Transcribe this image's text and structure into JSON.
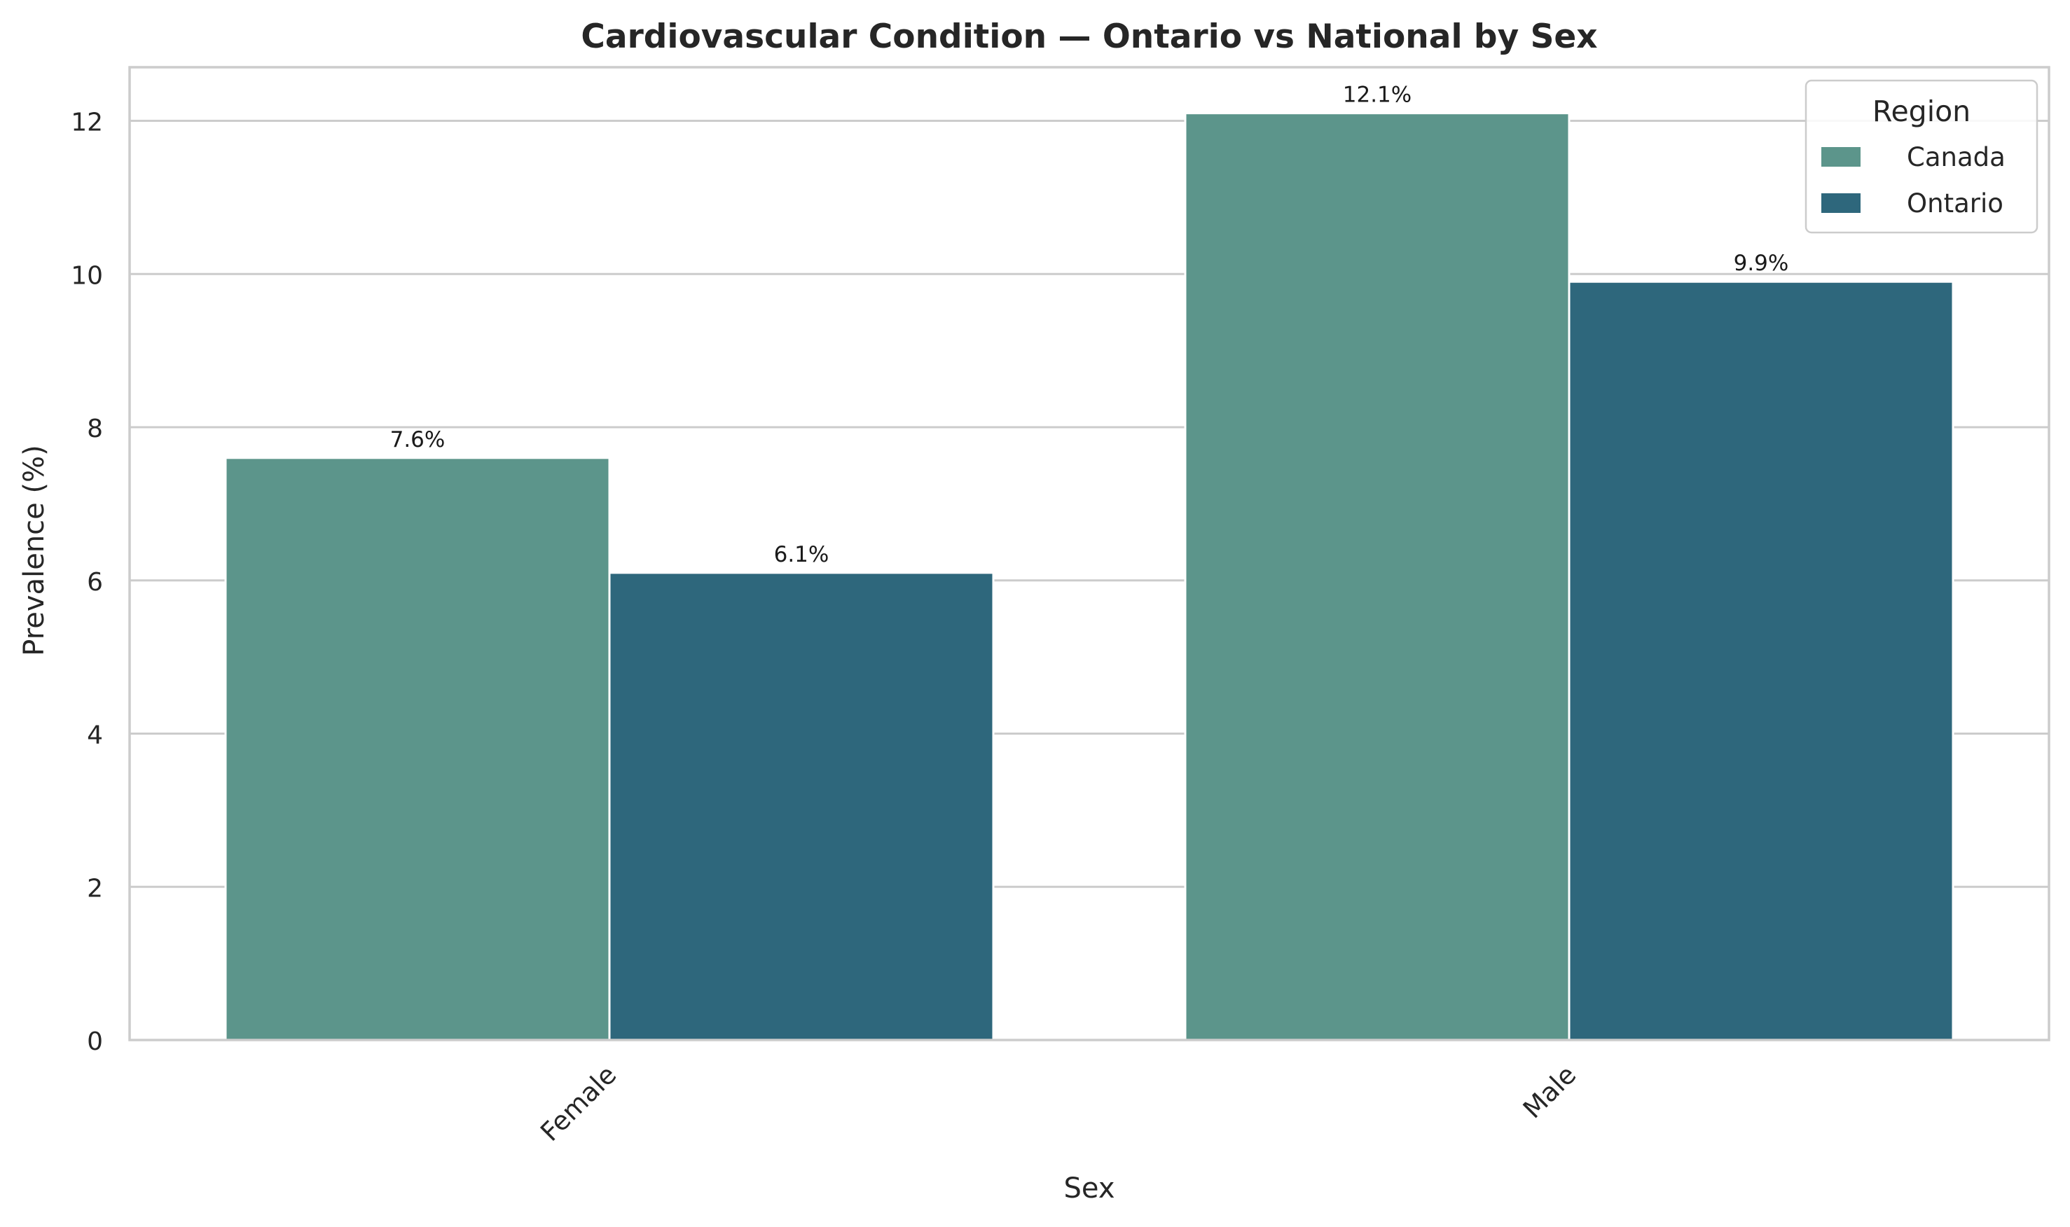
{
  "chart_data": {
    "type": "bar",
    "title": "Cardiovascular Condition — Ontario vs National by Sex",
    "xlabel": "Sex",
    "ylabel": "Prevalence (%)",
    "categories": [
      "Female",
      "Male"
    ],
    "series": [
      {
        "name": "Canada",
        "values": [
          7.6,
          12.1
        ],
        "labels": [
          "7.6%",
          "12.1%"
        ],
        "color": "#5c958b"
      },
      {
        "name": "Ontario",
        "values": [
          6.1,
          9.9
        ],
        "labels": [
          "6.1%",
          "9.9%"
        ],
        "color": "#2e677c"
      }
    ],
    "ylim": [
      0,
      12.7
    ],
    "yticks": [
      0,
      2,
      4,
      6,
      8,
      10,
      12
    ],
    "grid": true,
    "grid_axis": "y",
    "x_tick_rotation": 45,
    "legend": {
      "title": "Region",
      "placement": "top-right"
    }
  }
}
